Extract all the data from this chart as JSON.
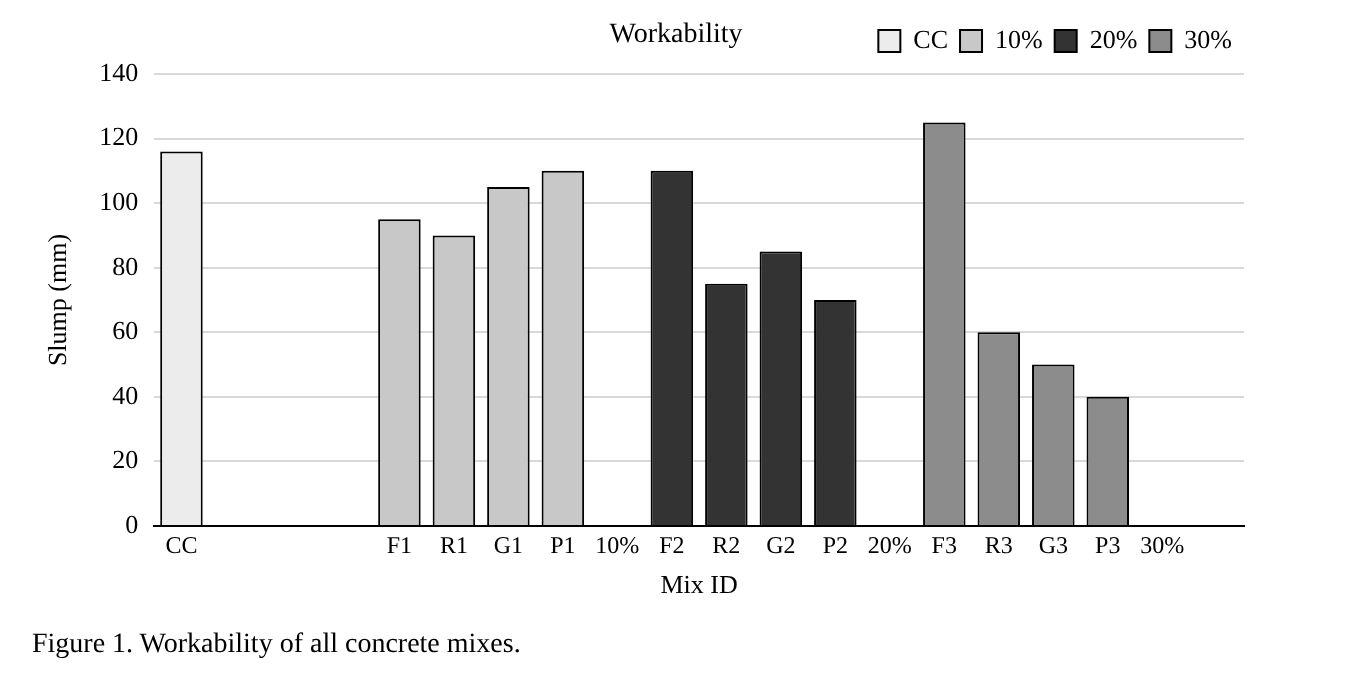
{
  "chart_data": {
    "type": "bar",
    "title": "Workability",
    "xlabel": "Mix ID",
    "ylabel": "Slump (mm)",
    "categories": [
      "CC",
      null,
      null,
      null,
      "F1",
      "R1",
      "G1",
      "P1",
      "10%",
      "F2",
      "R2",
      "G2",
      "P2",
      "20%",
      "F3",
      "R3",
      "G3",
      "P3",
      "30%",
      null
    ],
    "series": [
      {
        "name": "CC",
        "color": "#ececec",
        "values": [
          116,
          null,
          null,
          null,
          null,
          null,
          null,
          null,
          null,
          null,
          null,
          null,
          null,
          null,
          null,
          null,
          null,
          null,
          null,
          null
        ]
      },
      {
        "name": "10%",
        "color": "#c8c8c8",
        "values": [
          null,
          null,
          null,
          null,
          95,
          90,
          105,
          110,
          null,
          null,
          null,
          null,
          null,
          null,
          null,
          null,
          null,
          null,
          null,
          null
        ]
      },
      {
        "name": "20%",
        "color": "#333333",
        "values": [
          null,
          null,
          null,
          null,
          null,
          null,
          null,
          null,
          null,
          110,
          75,
          85,
          70,
          null,
          null,
          null,
          null,
          null,
          null,
          null
        ]
      },
      {
        "name": "30%",
        "color": "#8c8c8c",
        "values": [
          null,
          null,
          null,
          null,
          null,
          null,
          null,
          null,
          null,
          null,
          null,
          null,
          null,
          null,
          125,
          60,
          50,
          40,
          null,
          null
        ]
      }
    ],
    "ylim": [
      0,
      140
    ],
    "yticks": [
      0,
      20,
      40,
      60,
      80,
      100,
      120,
      140
    ],
    "grid": "y",
    "legend": "top right",
    "annotations": [
      "Figure 1. Workability of all concrete mixes."
    ]
  }
}
